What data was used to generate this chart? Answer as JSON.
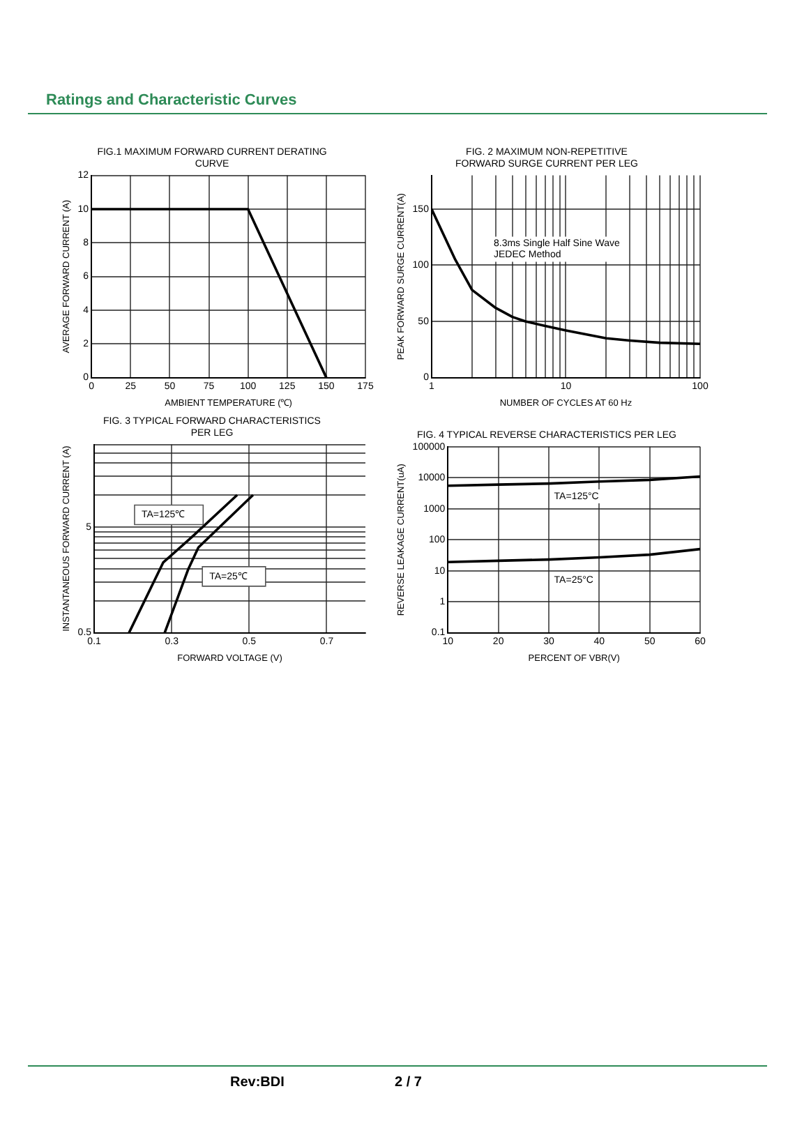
{
  "chart_data": [
    {
      "type": "line",
      "title": "FIG.1 MAXIMUM FORWARD CURRENT DERATING\nCURVE",
      "xlabel": "AMBIENT TEMPERATURE (℃)",
      "ylabel": "AVERAGE FORWARD CURRENT (A)",
      "xlim": [
        0,
        175
      ],
      "ylim": [
        0,
        12
      ],
      "xticks": [
        0,
        25,
        50,
        75,
        100,
        125,
        150,
        175
      ],
      "yticks": [
        0,
        2,
        4,
        6,
        8,
        10,
        12
      ],
      "grid": true,
      "marker": "none",
      "series": [
        {
          "color": "#000000",
          "x": [
            0,
            100,
            150
          ],
          "values": [
            10,
            10,
            0
          ]
        }
      ]
    },
    {
      "type": "line",
      "title": "FIG. 2 MAXIMUM NON-REPETITIVE\nFORWARD SURGE CURRENT PER LEG",
      "xlabel": "NUMBER OF CYCLES AT 60 Hz",
      "ylabel": "PEAK FORWARD SURGE CURRENT(A)",
      "log": "x",
      "xlim": [
        1,
        100
      ],
      "ylim": [
        0,
        180
      ],
      "xticks": [
        1,
        {
          "value": 2,
          "label": null
        },
        {
          "value": 3,
          "label": null
        },
        {
          "value": 4,
          "label": null
        },
        {
          "value": 5,
          "label": null
        },
        {
          "value": 6,
          "label": null
        },
        {
          "value": 7,
          "label": null
        },
        {
          "value": 8,
          "label": null
        },
        {
          "value": 9,
          "label": null
        },
        10,
        {
          "value": 20,
          "label": null
        },
        {
          "value": 30,
          "label": null
        },
        {
          "value": 40,
          "label": null
        },
        {
          "value": 50,
          "label": null
        },
        {
          "value": 60,
          "label": null
        },
        {
          "value": 70,
          "label": null
        },
        {
          "value": 80,
          "label": null
        },
        {
          "value": 90,
          "label": null
        },
        100
      ],
      "yticks": [
        0,
        50,
        100,
        150
      ],
      "grid": true,
      "marker": "none",
      "annotations": [
        "8.3ms Single Half Sine Wave\nJEDEC Method"
      ],
      "series": [
        {
          "color": "#000000",
          "x": [
            1,
            1.5,
            2,
            3,
            4,
            5,
            7,
            10,
            20,
            30,
            50,
            100
          ],
          "values": [
            150,
            105,
            78,
            62,
            54,
            50,
            46,
            42,
            35,
            33,
            31,
            30
          ]
        }
      ]
    },
    {
      "type": "line",
      "title": "FIG. 3 TYPICAL FORWARD CHARACTERISTICS\nPER LEG",
      "xlabel": "FORWARD VOLTAGE (V)",
      "ylabel": "INSTANTANEOUS FORWARD CURRENT (A)",
      "log": "y",
      "xlim": [
        0.1,
        0.8
      ],
      "ylim": [
        0.5,
        30
      ],
      "xticks": [
        0.1,
        0.3,
        0.5,
        0.7
      ],
      "yticks": [
        0.5,
        {
          "value": 1,
          "label": null
        },
        {
          "value": 1.5,
          "label": null
        },
        {
          "value": 2,
          "label": null
        },
        {
          "value": 2.5,
          "label": null
        },
        {
          "value": 3,
          "label": null
        },
        {
          "value": 3.5,
          "label": null
        },
        {
          "value": 4,
          "label": null
        },
        {
          "value": 4.5,
          "label": null
        },
        5,
        {
          "value": 10,
          "label": null
        },
        {
          "value": 15,
          "label": null
        },
        {
          "value": 20,
          "label": null
        },
        {
          "value": 25,
          "label": null
        },
        {
          "value": 30,
          "label": null
        }
      ],
      "grid": true,
      "marker": "none",
      "series": [
        {
          "name": "TA=125℃",
          "color": "#000000",
          "x": [
            0.19,
            0.278,
            0.355,
            0.469
          ],
          "values": [
            0.5,
            2.3,
            4.1,
            10
          ]
        },
        {
          "name": "TA=25℃",
          "color": "#000000",
          "x": [
            0.282,
            0.343,
            0.369,
            0.51
          ],
          "values": [
            0.5,
            2,
            3.2,
            10
          ]
        }
      ]
    },
    {
      "type": "line",
      "title": "FIG. 4 TYPICAL REVERSE CHARACTERISTICS PER LEG",
      "xlabel": "PERCENT OF VBR(V)",
      "ylabel": "REVERSE LEAKAGE CURRENT(uA)",
      "log": "y",
      "xlim": [
        10,
        60
      ],
      "ylim": [
        0.1,
        100000
      ],
      "xticks": [
        10,
        20,
        30,
        40,
        50,
        60
      ],
      "yticks": [
        0.1,
        1,
        10,
        100,
        1000,
        10000,
        100000
      ],
      "grid": true,
      "marker": "none",
      "series": [
        {
          "name": "TA=125°C",
          "color": "#000000",
          "x": [
            10,
            20,
            30,
            40,
            50,
            60
          ],
          "values": [
            5500,
            6000,
            6500,
            7500,
            8500,
            11000
          ]
        },
        {
          "name": "TA=25°C",
          "color": "#000000",
          "x": [
            10,
            20,
            30,
            40,
            50,
            60
          ],
          "values": [
            19,
            21,
            23,
            27,
            33,
            50
          ]
        }
      ]
    },
    {
      "type": "other",
      "annotations": [
        "Ratings and Characteristic Curves",
        "Rev:BDI",
        "2 / 7"
      ]
    }
  ]
}
